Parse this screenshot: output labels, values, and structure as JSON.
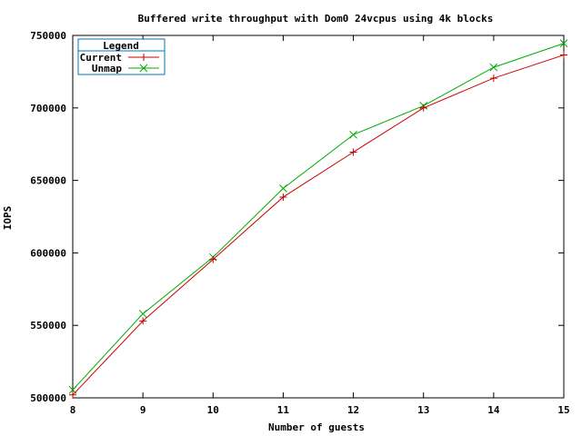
{
  "chart_data": {
    "type": "line",
    "title": "Buffered write throughput with Dom0 24vcpus using 4k blocks",
    "xlabel": "Number of guests",
    "ylabel": "IOPS",
    "xlim": [
      8,
      15
    ],
    "ylim": [
      500000,
      750000
    ],
    "x_ticks": [
      "8",
      "9",
      "10",
      "11",
      "12",
      "13",
      "14",
      "15"
    ],
    "y_ticks": [
      "750000",
      "700000",
      "650000",
      "600000",
      "550000",
      "500000"
    ],
    "x": [
      8,
      9,
      10,
      11,
      12,
      13,
      14,
      15
    ],
    "series": [
      {
        "name": "Current",
        "color": "#cc0000",
        "marker": "plus",
        "values": [
          502000,
          553000,
          595500,
          638500,
          669500,
          700000,
          720500,
          736500
        ]
      },
      {
        "name": "Unmap",
        "color": "#00aa00",
        "marker": "cross",
        "values": [
          505500,
          558000,
          597000,
          644500,
          681500,
          701500,
          728000,
          744500
        ]
      }
    ],
    "legend": {
      "title": "Legend",
      "placement": "top-left"
    },
    "grid": false
  }
}
